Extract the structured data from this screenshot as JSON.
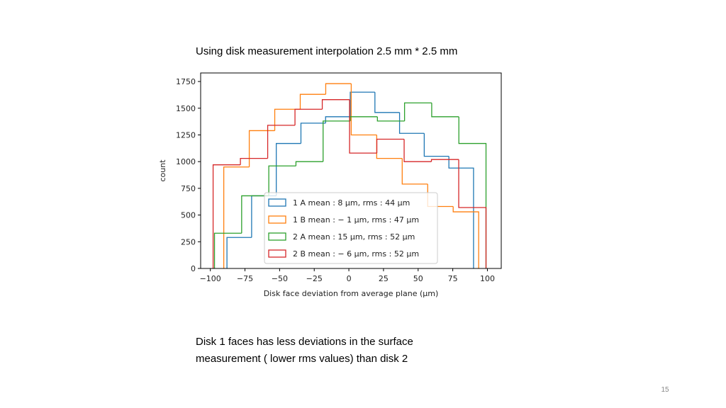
{
  "slide": {
    "title": "Using disk measurement interpolation 2.5 mm * 2.5 mm",
    "note": [
      "Disk 1 faces has less deviations in the surface",
      "measurement ( lower rms values) than disk 2"
    ],
    "page_number": "15"
  },
  "chart_data": {
    "type": "histogram",
    "x_label": "Disk face deviation from average plane (μm)",
    "y_label": "count",
    "xlim": [
      -107,
      110
    ],
    "ylim": [
      0,
      1830
    ],
    "xticks": [
      {
        "value": -100,
        "label": "−100"
      },
      {
        "value": -75,
        "label": "−75"
      },
      {
        "value": -50,
        "label": "−50"
      },
      {
        "value": -25,
        "label": "−25"
      },
      0,
      25,
      50,
      75,
      100
    ],
    "yticks": [
      0,
      250,
      500,
      750,
      1000,
      1250,
      1500,
      1750
    ],
    "legend": "lower center",
    "series": [
      {
        "name": "1 A mean : 8 μm, rms : 44 μm",
        "color": "#1f77b4",
        "bins": [
          -88,
          -70.2,
          -52.4,
          -34.6,
          -16.8,
          1,
          18.8,
          36.6,
          54.4,
          72.2,
          90
        ],
        "values": [
          290,
          680,
          1170,
          1360,
          1420,
          1650,
          1460,
          1265,
          1050,
          940
        ]
      },
      {
        "name": "1 B mean : − 1 μm, rms : 47 μm",
        "color": "#ff7f0e",
        "bins": [
          -90.3,
          -71.9,
          -53.5,
          -35.1,
          -16.7,
          1.7,
          20.1,
          38.5,
          56.9,
          75.3,
          93.7
        ],
        "values": [
          950,
          1290,
          1490,
          1630,
          1730,
          1250,
          1030,
          790,
          580,
          530
        ]
      },
      {
        "name": "2 A mean : 15 μm, rms : 52 μm",
        "color": "#2ca02c",
        "bins": [
          -97,
          -77.4,
          -57.8,
          -38.2,
          -18.6,
          1,
          20.6,
          40.2,
          59.8,
          79.4,
          99
        ],
        "values": [
          330,
          680,
          960,
          1000,
          1380,
          1420,
          1380,
          1550,
          1420,
          1170
        ]
      },
      {
        "name": "2 B mean : − 6 μm, rms : 52 μm",
        "color": "#d62728",
        "bins": [
          -98,
          -78.3,
          -58.6,
          -38.9,
          -19.2,
          0.5,
          20.2,
          39.9,
          59.6,
          79.3,
          99
        ],
        "values": [
          970,
          1030,
          1340,
          1490,
          1580,
          1080,
          1210,
          1000,
          1020,
          570
        ]
      }
    ]
  }
}
